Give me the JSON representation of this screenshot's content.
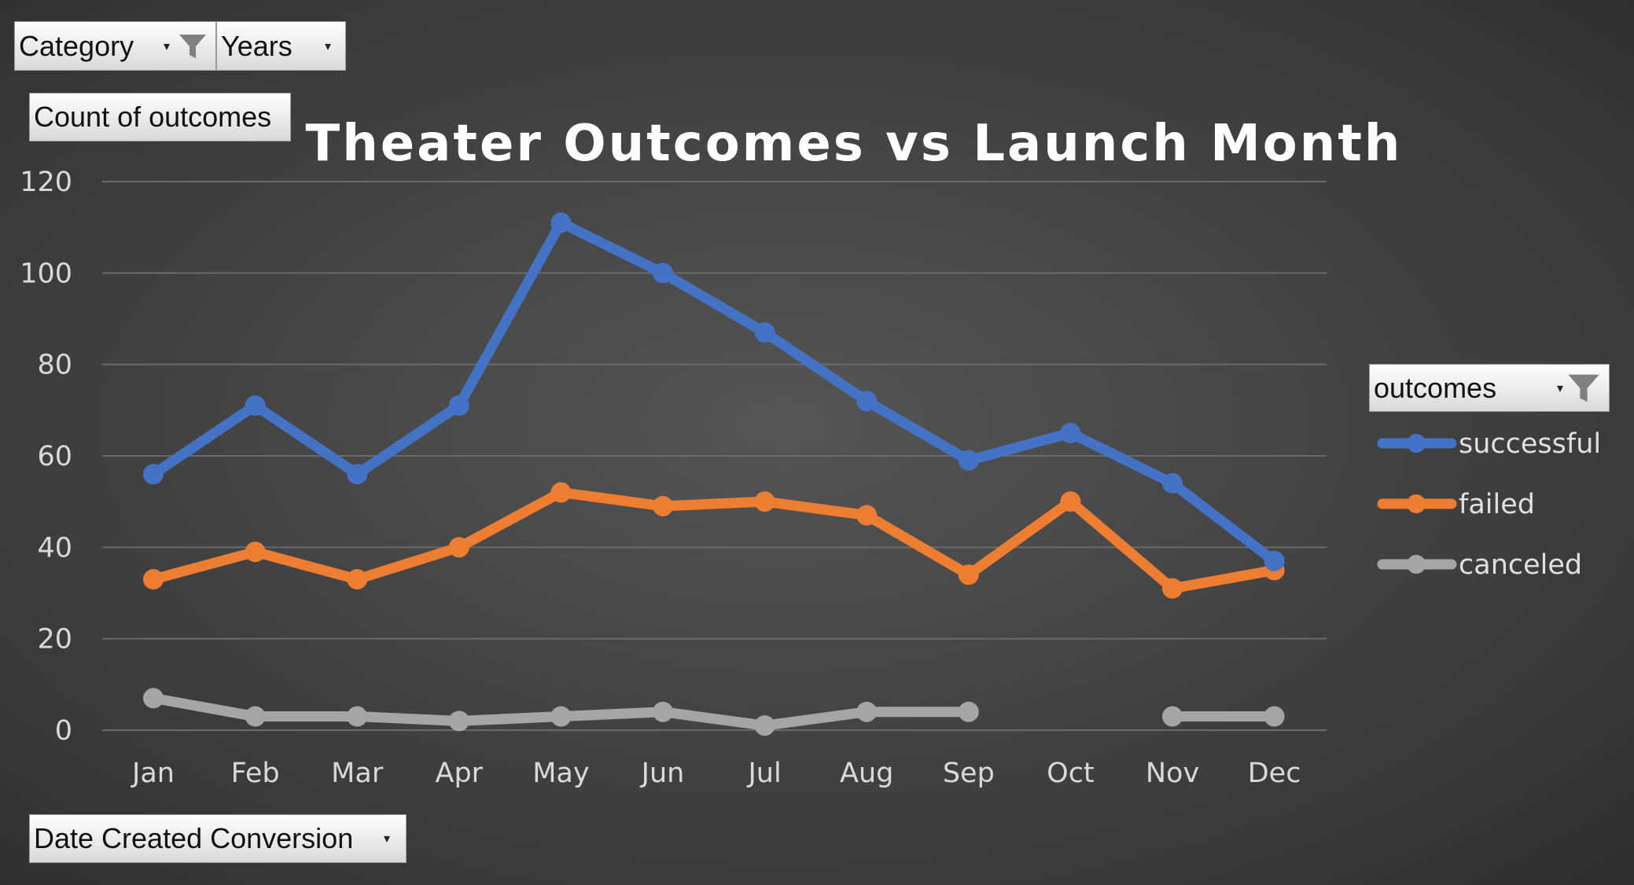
{
  "filters": {
    "category_label": "Category",
    "years_label": "Years",
    "values_label": "Count of outcomes",
    "legend_field_label": "outcomes",
    "axis_field_label": "Date Created Conversion"
  },
  "icons": {
    "filter": "funnel-icon",
    "dropdown": "chevron-down-icon"
  },
  "chart_data": {
    "type": "line",
    "title": "Theater Outcomes vs Launch Month",
    "xlabel": "",
    "ylabel": "",
    "categories": [
      "Jan",
      "Feb",
      "Mar",
      "Apr",
      "May",
      "Jun",
      "Jul",
      "Aug",
      "Sep",
      "Oct",
      "Nov",
      "Dec"
    ],
    "ylim": [
      0,
      120
    ],
    "yticks": [
      "0",
      "20",
      "40",
      "60",
      "80",
      "100",
      "120"
    ],
    "grid": true,
    "legend": "right",
    "series": [
      {
        "name": "successful",
        "color": "#4472C4",
        "values": [
          56,
          71,
          56,
          71,
          111,
          100,
          87,
          72,
          59,
          65,
          54,
          37
        ]
      },
      {
        "name": "failed",
        "color": "#ED7D31",
        "values": [
          33,
          39,
          33,
          40,
          52,
          49,
          50,
          47,
          34,
          50,
          31,
          35
        ]
      },
      {
        "name": "canceled",
        "color": "#A5A5A5",
        "values": [
          7,
          3,
          3,
          2,
          3,
          4,
          1,
          4,
          4,
          null,
          3,
          3
        ]
      }
    ]
  }
}
